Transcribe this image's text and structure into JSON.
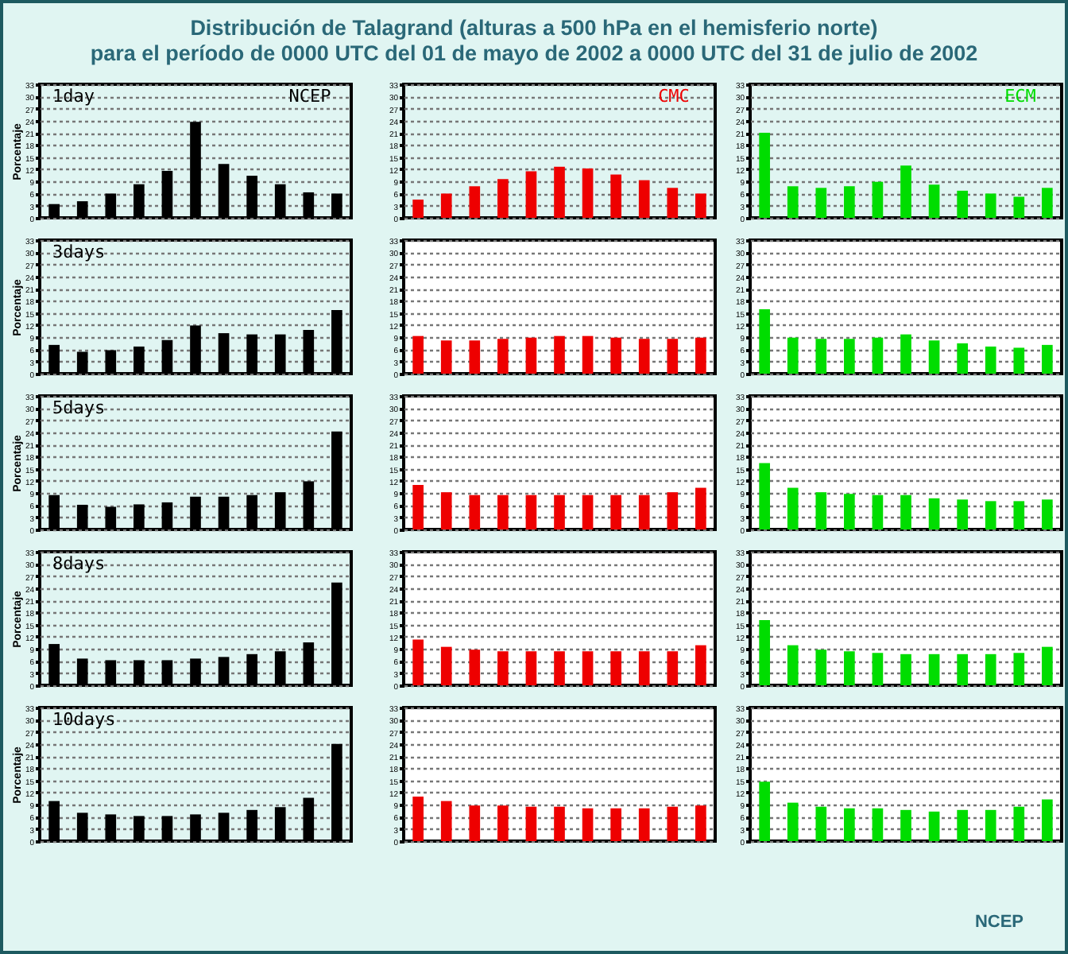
{
  "chart_data": [
    {
      "type": "bar",
      "title": "Distribución de Talagrand (alturas a 500 hPa en el hemisferio norte)",
      "subtitle": "para el período de 0000 UTC del 01 de mayo de 2002 a 0000 UTC del 31 de julio de 2002",
      "ylabel": "Porcentaje",
      "categories": [
        null,
        null,
        null,
        null,
        null,
        null,
        null,
        null,
        null,
        null,
        null
      ],
      "values": [
        3.4,
        4.1,
        6,
        8.3,
        11.6,
        23.7,
        13.3,
        10.4,
        8.3,
        6.3,
        6
      ],
      "color": "#000000",
      "ylim": [
        0,
        33
      ],
      "yticks": [
        0,
        3,
        6,
        9,
        12,
        15,
        18,
        21,
        24,
        27,
        30,
        33
      ],
      "grid": "y",
      "tick_labels": "y",
      "annotations": [
        "1day",
        "NCEP",
        "NCEP"
      ]
    },
    {
      "type": "bar",
      "categories": [
        null,
        null,
        null,
        null,
        null,
        null,
        null,
        null,
        null,
        null,
        null
      ],
      "values": [
        4.5,
        6,
        7.8,
        9.6,
        11.5,
        12.6,
        12.2,
        10.7,
        9.3,
        7.4,
        6
      ],
      "color": "#ee0000",
      "ylim": [
        0,
        33
      ],
      "yticks": [
        0,
        3,
        6,
        9,
        12,
        15,
        18,
        21,
        24,
        27,
        30,
        33
      ],
      "grid": "y",
      "tick_labels": "y",
      "annotations": [
        "CMC"
      ]
    },
    {
      "type": "bar",
      "categories": [
        null,
        null,
        null,
        null,
        null,
        null,
        null,
        null,
        null,
        null,
        null
      ],
      "values": [
        21,
        7.8,
        7.4,
        7.8,
        8.9,
        12.9,
        8.2,
        6.7,
        6,
        5.2,
        7.4
      ],
      "color": "#00dd00",
      "ylim": [
        0,
        33
      ],
      "yticks": [
        0,
        3,
        6,
        9,
        12,
        15,
        18,
        21,
        24,
        27,
        30,
        33
      ],
      "grid": "y",
      "tick_labels": "y",
      "annotations": [
        "ECM"
      ]
    },
    {
      "type": "bar",
      "ylabel": "Porcentaje",
      "categories": [
        null,
        null,
        null,
        null,
        null,
        null,
        null,
        null,
        null,
        null,
        null
      ],
      "values": [
        7.1,
        5.4,
        5.8,
        6.7,
        8.3,
        11.9,
        10,
        9.7,
        9.7,
        10.8,
        15.7
      ],
      "color": "#000000",
      "ylim": [
        0,
        33
      ],
      "yticks": [
        0,
        3,
        6,
        9,
        12,
        15,
        18,
        21,
        24,
        27,
        30,
        33
      ],
      "grid": "y",
      "tick_labels": "y",
      "annotations": [
        "3days"
      ]
    },
    {
      "type": "bar",
      "categories": [
        null,
        null,
        null,
        null,
        null,
        null,
        null,
        null,
        null,
        null,
        null
      ],
      "values": [
        9.3,
        8.2,
        8.2,
        8.6,
        8.9,
        9.3,
        9.3,
        8.9,
        8.6,
        8.6,
        8.9
      ],
      "color": "#ee0000",
      "ylim": [
        0,
        33
      ],
      "yticks": [
        0,
        3,
        6,
        9,
        12,
        15,
        18,
        21,
        24,
        27,
        30,
        33
      ],
      "grid": "y",
      "tick_labels": "y"
    },
    {
      "type": "bar",
      "categories": [
        null,
        null,
        null,
        null,
        null,
        null,
        null,
        null,
        null,
        null,
        null
      ],
      "values": [
        15.9,
        8.9,
        8.6,
        8.6,
        8.9,
        9.7,
        8.2,
        7.5,
        6.7,
        6.4,
        7.1
      ],
      "color": "#00dd00",
      "ylim": [
        0,
        33
      ],
      "yticks": [
        0,
        3,
        6,
        9,
        12,
        15,
        18,
        21,
        24,
        27,
        30,
        33
      ],
      "grid": "y",
      "tick_labels": "y"
    },
    {
      "type": "bar",
      "ylabel": "Porcentaje",
      "categories": [
        null,
        null,
        null,
        null,
        null,
        null,
        null,
        null,
        null,
        null,
        null
      ],
      "values": [
        8.5,
        6.1,
        5.6,
        6.2,
        6.7,
        8.1,
        8.1,
        8.5,
        9.2,
        11.9,
        24.2
      ],
      "color": "#000000",
      "ylim": [
        0,
        33
      ],
      "yticks": [
        0,
        3,
        6,
        9,
        12,
        15,
        18,
        21,
        24,
        27,
        30,
        33
      ],
      "grid": "y",
      "tick_labels": "y",
      "annotations": [
        "5days"
      ]
    },
    {
      "type": "bar",
      "categories": [
        null,
        null,
        null,
        null,
        null,
        null,
        null,
        null,
        null,
        null,
        null
      ],
      "values": [
        11,
        9.2,
        8.5,
        8.5,
        8.5,
        8.5,
        8.5,
        8.5,
        8.5,
        9.2,
        10.3
      ],
      "color": "#ee0000",
      "ylim": [
        0,
        33
      ],
      "yticks": [
        0,
        3,
        6,
        9,
        12,
        15,
        18,
        21,
        24,
        27,
        30,
        33
      ],
      "grid": "y",
      "tick_labels": "y"
    },
    {
      "type": "bar",
      "categories": [
        null,
        null,
        null,
        null,
        null,
        null,
        null,
        null,
        null,
        null,
        null
      ],
      "values": [
        16.4,
        10.3,
        9.2,
        8.8,
        8.5,
        8.5,
        7.7,
        7.4,
        7,
        7,
        7.4
      ],
      "color": "#00dd00",
      "ylim": [
        0,
        33
      ],
      "yticks": [
        0,
        3,
        6,
        9,
        12,
        15,
        18,
        21,
        24,
        27,
        30,
        33
      ],
      "grid": "y",
      "tick_labels": "y"
    },
    {
      "type": "bar",
      "ylabel": "Porcentaje",
      "categories": [
        null,
        null,
        null,
        null,
        null,
        null,
        null,
        null,
        null,
        null,
        null
      ],
      "values": [
        10.2,
        6.6,
        6.2,
        6.2,
        6.2,
        6.6,
        7,
        7.7,
        8.4,
        10.6,
        25.4
      ],
      "color": "#000000",
      "ylim": [
        0,
        33
      ],
      "yticks": [
        0,
        3,
        6,
        9,
        12,
        15,
        18,
        21,
        24,
        27,
        30,
        33
      ],
      "grid": "y",
      "tick_labels": "y",
      "annotations": [
        "8days"
      ]
    },
    {
      "type": "bar",
      "categories": [
        null,
        null,
        null,
        null,
        null,
        null,
        null,
        null,
        null,
        null,
        null
      ],
      "values": [
        11.3,
        9.5,
        8.8,
        8.4,
        8.4,
        8.4,
        8.4,
        8.4,
        8.4,
        8.4,
        9.9
      ],
      "color": "#ee0000",
      "ylim": [
        0,
        33
      ],
      "yticks": [
        0,
        3,
        6,
        9,
        12,
        15,
        18,
        21,
        24,
        27,
        30,
        33
      ],
      "grid": "y",
      "tick_labels": "y"
    },
    {
      "type": "bar",
      "categories": [
        null,
        null,
        null,
        null,
        null,
        null,
        null,
        null,
        null,
        null,
        null
      ],
      "values": [
        16.1,
        9.9,
        8.8,
        8.4,
        8,
        7.7,
        7.7,
        7.7,
        7.7,
        8,
        9.5
      ],
      "color": "#00dd00",
      "ylim": [
        0,
        33
      ],
      "yticks": [
        0,
        3,
        6,
        9,
        12,
        15,
        18,
        21,
        24,
        27,
        30,
        33
      ],
      "grid": "y",
      "tick_labels": "y"
    },
    {
      "type": "bar",
      "ylabel": "Porcentaje",
      "categories": [
        null,
        null,
        null,
        null,
        null,
        null,
        null,
        null,
        null,
        null,
        null
      ],
      "values": [
        9.9,
        7,
        6.6,
        6.2,
        6.2,
        6.6,
        7,
        7.7,
        8.4,
        10.7,
        24
      ],
      "color": "#000000",
      "ylim": [
        0,
        33
      ],
      "yticks": [
        0,
        3,
        6,
        9,
        12,
        15,
        18,
        21,
        24,
        27,
        30,
        33
      ],
      "grid": "y",
      "tick_labels": "y",
      "annotations": [
        "10days"
      ]
    },
    {
      "type": "bar",
      "categories": [
        null,
        null,
        null,
        null,
        null,
        null,
        null,
        null,
        null,
        null,
        null
      ],
      "values": [
        11,
        9.9,
        8.8,
        8.8,
        8.5,
        8.5,
        8.1,
        8.1,
        8.1,
        8.5,
        8.8
      ],
      "color": "#ee0000",
      "ylim": [
        0,
        33
      ],
      "yticks": [
        0,
        3,
        6,
        9,
        12,
        15,
        18,
        21,
        24,
        27,
        30,
        33
      ],
      "grid": "y",
      "tick_labels": "y"
    },
    {
      "type": "bar",
      "categories": [
        null,
        null,
        null,
        null,
        null,
        null,
        null,
        null,
        null,
        null,
        null
      ],
      "values": [
        14.7,
        9.5,
        8.5,
        8.1,
        8.1,
        7.7,
        7.3,
        7.7,
        7.7,
        8.5,
        10.3
      ],
      "color": "#00dd00",
      "ylim": [
        0,
        33
      ],
      "yticks": [
        0,
        3,
        6,
        9,
        12,
        15,
        18,
        21,
        24,
        27,
        30,
        33
      ],
      "grid": "y",
      "tick_labels": "y"
    }
  ]
}
